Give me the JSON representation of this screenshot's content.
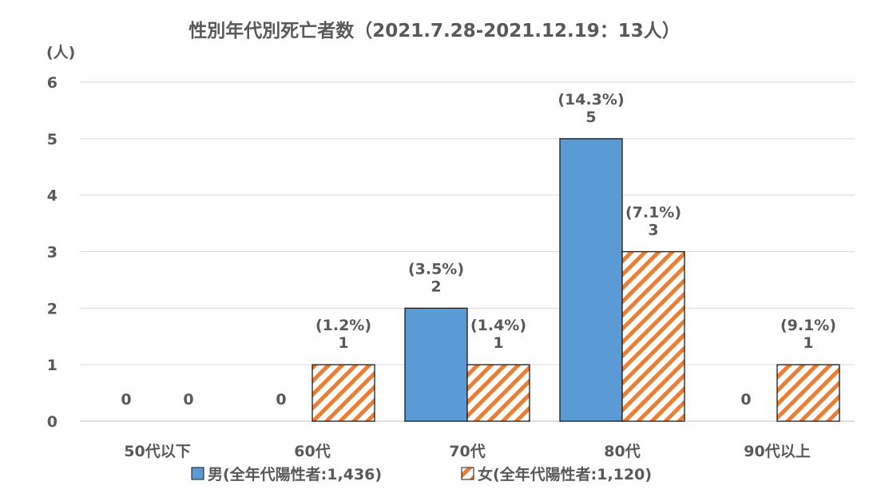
{
  "chart_data": {
    "type": "bar",
    "title": "性別年代別死亡者数（2021.7.28-2021.12.19：13人）",
    "ylabel": "(人)",
    "xlabel": "",
    "ylim": [
      0,
      6
    ],
    "yticks": [
      "0",
      "1",
      "2",
      "3",
      "4",
      "5",
      "6"
    ],
    "grid": true,
    "legend_position": "bottom",
    "categories": [
      "50代以下",
      "60代",
      "70代",
      "80代",
      "90代以上"
    ],
    "series": [
      {
        "name": "男(全年代陽性者:1,436)",
        "color": "#5b9bd5",
        "pattern": "solid",
        "values": [
          0,
          0,
          2,
          5,
          0
        ],
        "labels": [
          "0",
          "0",
          "2",
          "5",
          "0"
        ],
        "percent_labels": [
          "",
          "",
          "(3.5%)",
          "(14.3%)",
          ""
        ]
      },
      {
        "name": "女(全年代陽性者:1,120)",
        "color": "#ed7d31",
        "pattern": "diagonal-stripes",
        "values": [
          0,
          1,
          1,
          3,
          1
        ],
        "labels": [
          "0",
          "1",
          "1",
          "3",
          "1"
        ],
        "percent_labels": [
          "",
          "(1.2%)",
          "(1.4%)",
          "(7.1%)",
          "(9.1%)"
        ]
      }
    ]
  }
}
